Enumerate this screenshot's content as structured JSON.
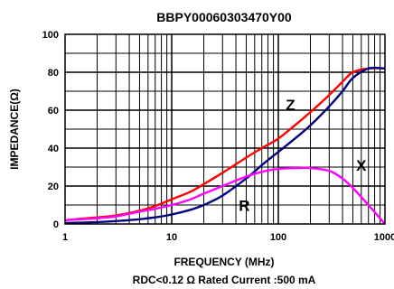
{
  "chart_data": {
    "type": "line",
    "title": "BBPY00060303470Y00",
    "xlabel": "FREQUENCY (MHz)",
    "ylabel": "IMPEDANCE(Ω)",
    "note": "RDC<0.12 Ω Rated Current :500 mA",
    "x_scale": "log",
    "xlim": [
      1,
      1000
    ],
    "ylim": [
      0,
      100
    ],
    "grid": true,
    "xticks": [
      1,
      10,
      100,
      1000
    ],
    "xtick_labels": [
      "1",
      "10",
      "100",
      "1000"
    ],
    "yticks": [
      0,
      20,
      40,
      60,
      80,
      100
    ],
    "ytick_labels": [
      "0",
      "20",
      "40",
      "60",
      "80",
      "100"
    ],
    "series": [
      {
        "name": "Z",
        "color": "#ff0000",
        "x": [
          1,
          2,
          3,
          5,
          7,
          10,
          15,
          20,
          30,
          50,
          70,
          100,
          150,
          200,
          300,
          400,
          500,
          700,
          1000
        ],
        "y": [
          2,
          3.5,
          4.5,
          7,
          9.5,
          13,
          17,
          21,
          27,
          35,
          40,
          45,
          53,
          59,
          68,
          75,
          80,
          82,
          82
        ]
      },
      {
        "name": "R",
        "color": "#000080",
        "x": [
          1,
          2,
          3,
          5,
          7,
          10,
          15,
          20,
          30,
          50,
          70,
          100,
          150,
          200,
          300,
          400,
          500,
          700,
          1000
        ],
        "y": [
          0.5,
          1,
          1.5,
          2.5,
          3.5,
          5,
          7.5,
          10,
          15,
          24,
          31,
          38,
          46,
          52,
          62,
          70,
          77,
          82,
          82
        ]
      },
      {
        "name": "X",
        "color": "#ff00ff",
        "x": [
          1,
          2,
          3,
          5,
          7,
          10,
          15,
          20,
          30,
          50,
          70,
          100,
          150,
          200,
          300,
          400,
          500,
          700,
          1000
        ],
        "y": [
          2,
          3,
          4,
          6.5,
          8,
          10,
          13,
          16,
          20,
          25,
          27.5,
          29,
          29.5,
          29.5,
          28,
          24,
          19,
          10,
          0
        ]
      }
    ],
    "curve_labels": [
      {
        "text": "Z",
        "x": 130,
        "y": 60
      },
      {
        "text": "R",
        "x": 48,
        "y": 7
      },
      {
        "text": "X",
        "x": 600,
        "y": 28
      }
    ]
  }
}
